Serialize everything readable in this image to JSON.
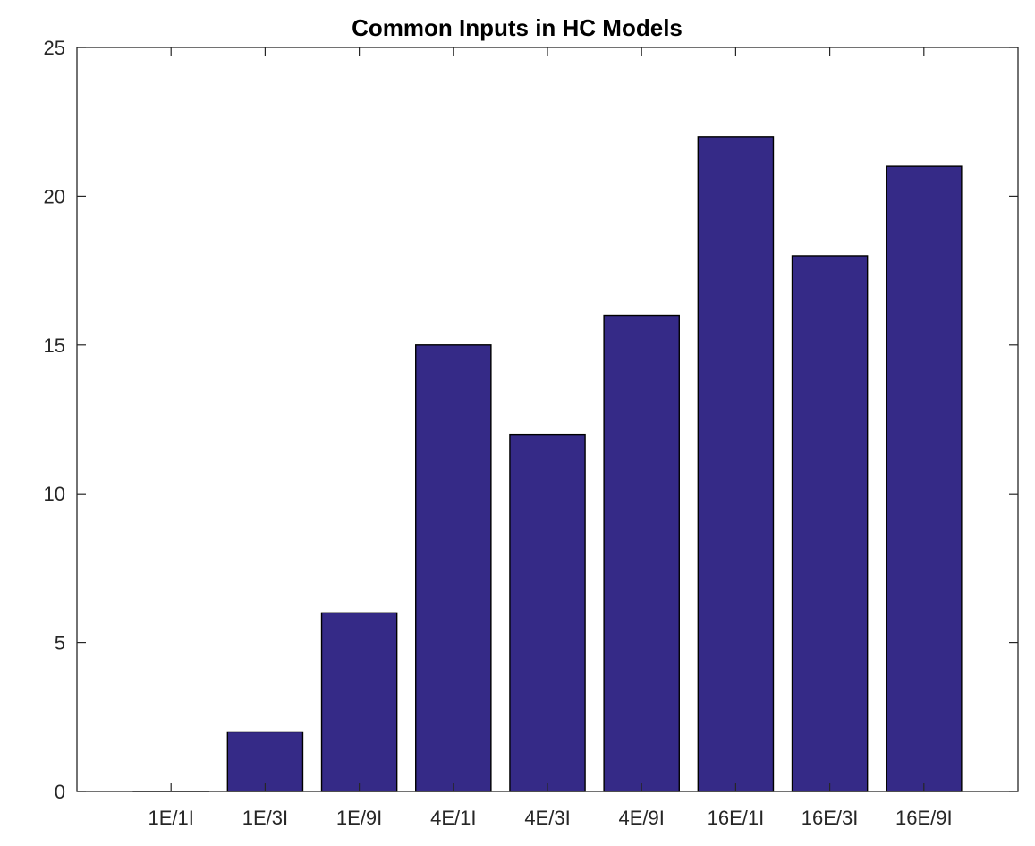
{
  "chart_data": {
    "type": "bar",
    "title": "Common Inputs in HC Models",
    "xlabel": "",
    "ylabel": "",
    "categories": [
      "1E/1I",
      "1E/3I",
      "1E/9I",
      "4E/1I",
      "4E/3I",
      "4E/9I",
      "16E/1I",
      "16E/3I",
      "16E/9I"
    ],
    "values": [
      0,
      2,
      6,
      15,
      12,
      16,
      22,
      18,
      21
    ],
    "ylim": [
      0,
      25
    ],
    "yticks": [
      "0",
      "5",
      "10",
      "15",
      "20",
      "25"
    ],
    "grid": false,
    "legend": "none",
    "colors": {
      "bar_fill": "#352A87",
      "bar_stroke": "#000000",
      "axis": "#262626",
      "background": "#ffffff"
    }
  }
}
